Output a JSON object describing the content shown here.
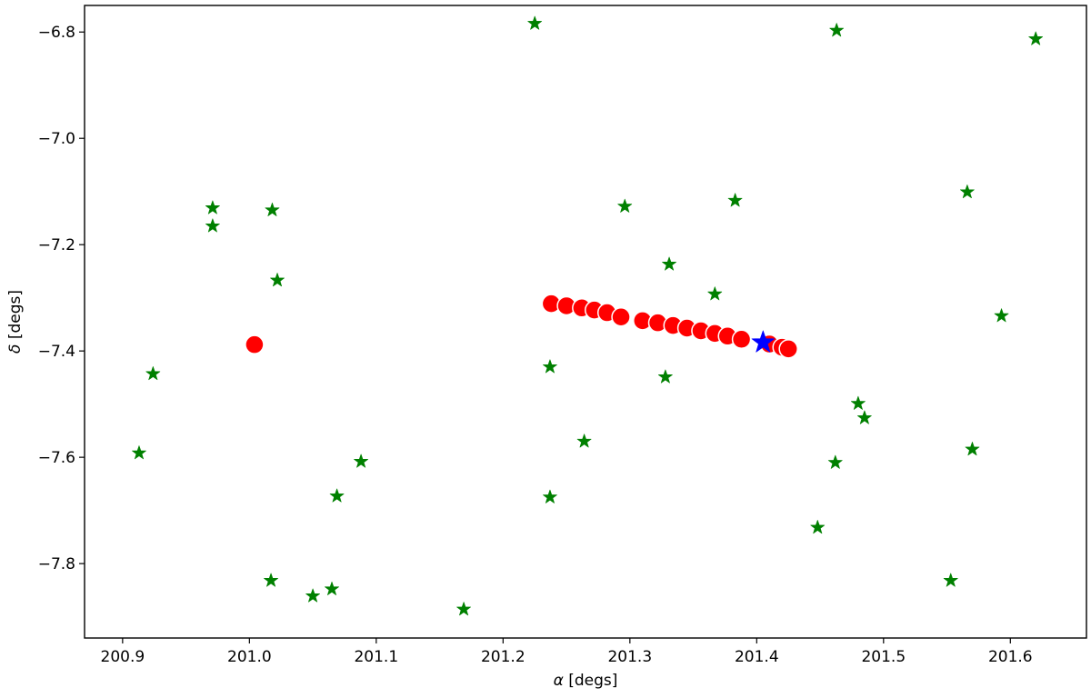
{
  "chart_data": {
    "type": "scatter",
    "title": "",
    "xlabel": {
      "symbol": "α",
      "unit": " [degs]"
    },
    "ylabel": {
      "symbol": "δ",
      "unit": " [degs]"
    },
    "xlim": [
      200.87,
      201.66
    ],
    "ylim": [
      -7.94,
      -6.75
    ],
    "xticks": [
      200.9,
      201.0,
      201.1,
      201.2,
      201.3,
      201.4,
      201.5,
      201.6
    ],
    "xtick_labels": [
      "200.9",
      "201.0",
      "201.1",
      "201.2",
      "201.3",
      "201.4",
      "201.5",
      "201.6"
    ],
    "yticks": [
      -6.8,
      -7.0,
      -7.2,
      -7.4,
      -7.6,
      -7.8
    ],
    "ytick_labels": [
      "−6.8",
      "−7.0",
      "−7.2",
      "−7.4",
      "−7.6",
      "−7.8"
    ],
    "grid": false,
    "series": [
      {
        "marker": "star",
        "color": "#008000",
        "points": [
          [
            201.225,
            -6.784
          ],
          [
            201.463,
            -6.797
          ],
          [
            201.62,
            -6.813
          ],
          [
            200.971,
            -7.131
          ],
          [
            200.971,
            -7.165
          ],
          [
            201.018,
            -7.135
          ],
          [
            201.022,
            -7.267
          ],
          [
            200.924,
            -7.443
          ],
          [
            200.913,
            -7.592
          ],
          [
            201.088,
            -7.608
          ],
          [
            201.069,
            -7.673
          ],
          [
            201.017,
            -7.832
          ],
          [
            201.05,
            -7.861
          ],
          [
            201.065,
            -7.848
          ],
          [
            201.169,
            -7.886
          ],
          [
            201.237,
            -7.43
          ],
          [
            201.237,
            -7.675
          ],
          [
            201.264,
            -7.57
          ],
          [
            201.296,
            -7.128
          ],
          [
            201.331,
            -7.237
          ],
          [
            201.328,
            -7.449
          ],
          [
            201.367,
            -7.293
          ],
          [
            201.383,
            -7.117
          ],
          [
            201.448,
            -7.732
          ],
          [
            201.462,
            -7.61
          ],
          [
            201.48,
            -7.499
          ],
          [
            201.485,
            -7.526
          ],
          [
            201.553,
            -7.832
          ],
          [
            201.566,
            -7.101
          ],
          [
            201.57,
            -7.585
          ],
          [
            201.593,
            -7.334
          ]
        ]
      },
      {
        "marker": "circle",
        "color": "#ff0000",
        "points": [
          [
            201.004,
            -7.388
          ],
          [
            201.238,
            -7.311
          ],
          [
            201.25,
            -7.315
          ],
          [
            201.262,
            -7.319
          ],
          [
            201.272,
            -7.323
          ],
          [
            201.282,
            -7.328
          ],
          [
            201.293,
            -7.336
          ],
          [
            201.31,
            -7.343
          ],
          [
            201.322,
            -7.347
          ],
          [
            201.334,
            -7.352
          ],
          [
            201.345,
            -7.357
          ],
          [
            201.356,
            -7.362
          ],
          [
            201.367,
            -7.367
          ],
          [
            201.377,
            -7.372
          ],
          [
            201.388,
            -7.378
          ],
          [
            201.41,
            -7.387
          ],
          [
            201.42,
            -7.393
          ],
          [
            201.425,
            -7.396
          ]
        ]
      },
      {
        "marker": "star",
        "color": "#0000ff",
        "points": [
          [
            201.405,
            -7.384
          ]
        ]
      }
    ]
  }
}
